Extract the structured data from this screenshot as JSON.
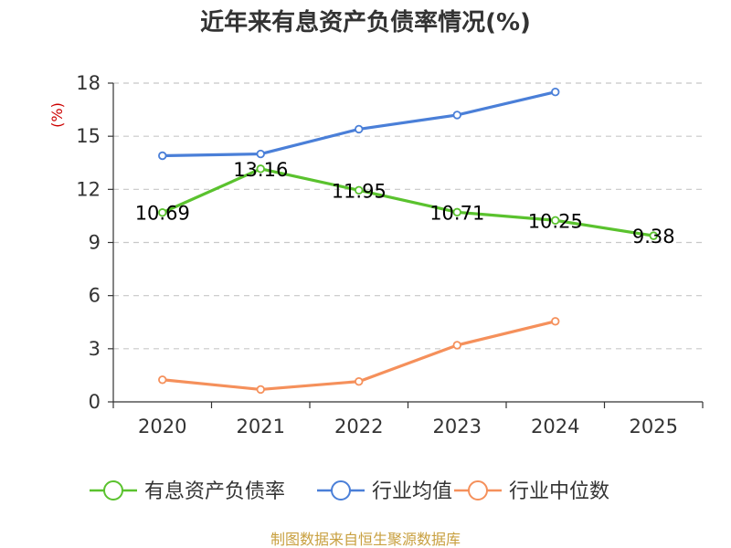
{
  "chart_data": {
    "type": "line",
    "title": "近年来有息资产负债率情况(%)",
    "unit": "(%)",
    "categories": [
      "2020",
      "2021",
      "2022",
      "2023",
      "2024",
      "2025"
    ],
    "ylim": [
      0,
      18
    ],
    "yticks": [
      0,
      3,
      6,
      9,
      12,
      15,
      18
    ],
    "ytick_labels": [
      "0",
      "3",
      "6",
      "9",
      "12",
      "15",
      "18"
    ],
    "grid": true,
    "legend_position": "bottom",
    "series": [
      {
        "name": "有息资产负债率",
        "values": [
          10.69,
          13.16,
          11.95,
          10.71,
          10.25,
          9.38
        ],
        "labels": [
          "10.69",
          "13.16",
          "11.95",
          "10.71",
          "10.25",
          "9.38"
        ],
        "color": "#5ac22e"
      },
      {
        "name": "行业均值",
        "values": [
          13.9,
          14.0,
          15.4,
          16.2,
          17.5,
          null
        ],
        "color": "#4a7fd8"
      },
      {
        "name": "行业中位数",
        "values": [
          1.25,
          0.7,
          1.15,
          3.2,
          4.55,
          null
        ],
        "color": "#f5905b"
      }
    ]
  },
  "source_text": "制图数据来自恒生聚源数据库",
  "colors": {
    "axis": "#333333",
    "grid": "#c8c8c8",
    "unit": "#cc0000",
    "source": "#c8a040"
  }
}
